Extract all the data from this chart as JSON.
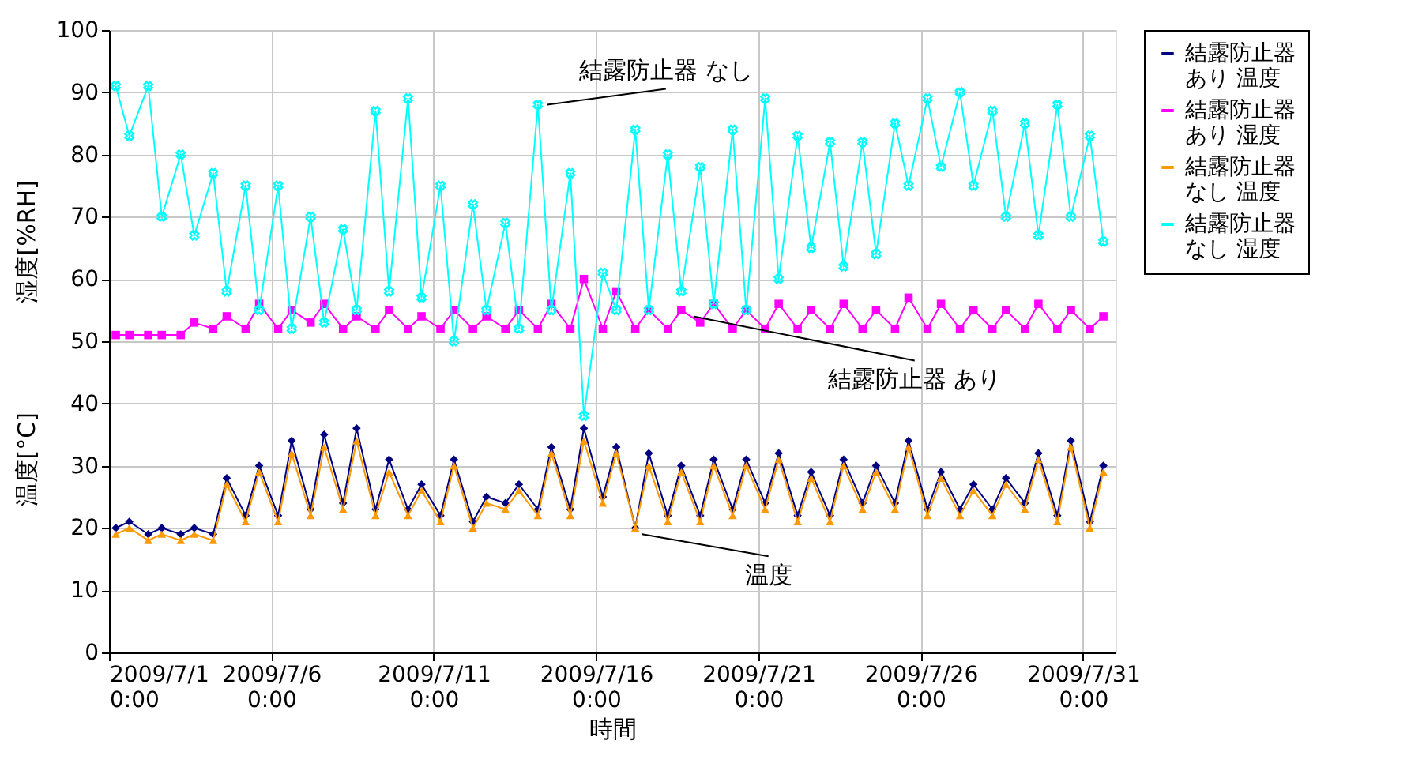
{
  "chart_data": {
    "type": "line",
    "xlabel": "時間",
    "ylabel": "温度[°C]",
    "annotations": [
      "湿度[%RH]",
      {
        "text": "結露防止器 なし",
        "x": "2009-07-14T12:00",
        "y": 88
      },
      {
        "text": "結露防止器 あり",
        "x": "2009-07-19T00:00",
        "y": 54
      },
      {
        "text": "温度",
        "x": "2009-07-17T10:00",
        "y": 19
      }
    ],
    "x": [
      "2009-07-01T05:00",
      "2009-07-01T15:00",
      "2009-07-02T05:00",
      "2009-07-02T15:00",
      "2009-07-03T05:00",
      "2009-07-03T15:00",
      "2009-07-04T05:00",
      "2009-07-04T15:00",
      "2009-07-05T05:00",
      "2009-07-05T15:00",
      "2009-07-06T05:00",
      "2009-07-06T15:00",
      "2009-07-07T05:00",
      "2009-07-07T15:00",
      "2009-07-08T05:00",
      "2009-07-08T15:00",
      "2009-07-09T05:00",
      "2009-07-09T15:00",
      "2009-07-10T05:00",
      "2009-07-10T15:00",
      "2009-07-11T05:00",
      "2009-07-11T15:00",
      "2009-07-12T05:00",
      "2009-07-12T15:00",
      "2009-07-13T05:00",
      "2009-07-13T15:00",
      "2009-07-14T05:00",
      "2009-07-14T15:00",
      "2009-07-15T05:00",
      "2009-07-15T15:00",
      "2009-07-16T05:00",
      "2009-07-16T15:00",
      "2009-07-17T05:00",
      "2009-07-17T15:00",
      "2009-07-18T05:00",
      "2009-07-18T15:00",
      "2009-07-19T05:00",
      "2009-07-19T15:00",
      "2009-07-20T05:00",
      "2009-07-20T15:00",
      "2009-07-21T05:00",
      "2009-07-21T15:00",
      "2009-07-22T05:00",
      "2009-07-22T15:00",
      "2009-07-23T05:00",
      "2009-07-23T15:00",
      "2009-07-24T05:00",
      "2009-07-24T15:00",
      "2009-07-25T05:00",
      "2009-07-25T15:00",
      "2009-07-26T05:00",
      "2009-07-26T15:00",
      "2009-07-27T05:00",
      "2009-07-27T15:00",
      "2009-07-28T05:00",
      "2009-07-28T15:00",
      "2009-07-29T05:00",
      "2009-07-29T15:00",
      "2009-07-30T05:00",
      "2009-07-30T15:00",
      "2009-07-31T05:00",
      "2009-07-31T15:00"
    ],
    "series": [
      {
        "name": "結露防止器あり 温度",
        "color": "#000080",
        "marker": "diamond",
        "values": [
          20,
          21,
          19,
          20,
          19,
          20,
          19,
          28,
          22,
          30,
          22,
          34,
          23,
          35,
          24,
          36,
          23,
          31,
          23,
          27,
          22,
          31,
          21,
          25,
          24,
          27,
          23,
          33,
          23,
          36,
          25,
          33,
          20,
          32,
          22,
          30,
          22,
          31,
          23,
          31,
          24,
          32,
          22,
          29,
          22,
          31,
          24,
          30,
          24,
          34,
          23,
          29,
          23,
          27,
          23,
          28,
          24,
          32,
          22,
          34,
          21,
          30
        ]
      },
      {
        "name": "結露防止器あり 湿度",
        "color": "#ff00ff",
        "marker": "square",
        "values": [
          51,
          51,
          51,
          51,
          51,
          53,
          52,
          54,
          52,
          56,
          52,
          55,
          53,
          56,
          52,
          54,
          52,
          55,
          52,
          54,
          52,
          55,
          52,
          54,
          52,
          55,
          52,
          56,
          52,
          60,
          52,
          58,
          52,
          55,
          52,
          55,
          53,
          56,
          52,
          55,
          52,
          56,
          52,
          55,
          52,
          56,
          52,
          55,
          52,
          57,
          52,
          56,
          52,
          55,
          52,
          55,
          52,
          56,
          52,
          55,
          52,
          54
        ]
      },
      {
        "name": "結露防止器なし 温度",
        "color": "#ff9900",
        "marker": "triangle",
        "values": [
          19,
          20,
          18,
          19,
          18,
          19,
          18,
          27,
          21,
          29,
          21,
          32,
          22,
          33,
          23,
          34,
          22,
          29,
          22,
          26,
          21,
          30,
          20,
          24,
          23,
          26,
          22,
          32,
          22,
          34,
          24,
          32,
          20,
          30,
          21,
          29,
          21,
          30,
          22,
          30,
          23,
          31,
          21,
          28,
          21,
          30,
          23,
          29,
          23,
          33,
          22,
          28,
          22,
          26,
          22,
          27,
          23,
          31,
          21,
          33,
          20,
          29
        ]
      },
      {
        "name": "結露防止器なし 湿度",
        "color": "#00ffff",
        "marker": "cross",
        "values": [
          91,
          83,
          91,
          70,
          80,
          67,
          77,
          58,
          75,
          55,
          75,
          52,
          70,
          53,
          68,
          55,
          87,
          58,
          89,
          57,
          75,
          50,
          72,
          55,
          69,
          52,
          88,
          55,
          77,
          38,
          61,
          55,
          84,
          55,
          80,
          58,
          78,
          56,
          84,
          55,
          89,
          60,
          83,
          65,
          82,
          62,
          82,
          64,
          85,
          75,
          89,
          78,
          90,
          75,
          87,
          70,
          85,
          67,
          88,
          70,
          83,
          66
        ]
      }
    ],
    "xlim": [
      "2009-07-01T00:00",
      "2009-08-01T00:00"
    ],
    "xticks": [
      {
        "value": "2009-07-01T00:00",
        "label": "2009/7/1 0:00"
      },
      {
        "value": "2009-07-06T00:00",
        "label": "2009/7/6 0:00"
      },
      {
        "value": "2009-07-11T00:00",
        "label": "2009/7/11 0:00"
      },
      {
        "value": "2009-07-16T00:00",
        "label": "2009/7/16 0:00"
      },
      {
        "value": "2009-07-21T00:00",
        "label": "2009/7/21 0:00"
      },
      {
        "value": "2009-07-26T00:00",
        "label": "2009/7/26 0:00"
      },
      {
        "value": "2009-07-31T00:00",
        "label": "2009/7/31 0:00"
      }
    ],
    "ylim": [
      0,
      100
    ],
    "yticks": [
      0,
      10,
      20,
      30,
      40,
      50,
      60,
      70,
      80,
      90,
      100
    ],
    "grid": true,
    "legend": "right",
    "line_style": "solid"
  }
}
